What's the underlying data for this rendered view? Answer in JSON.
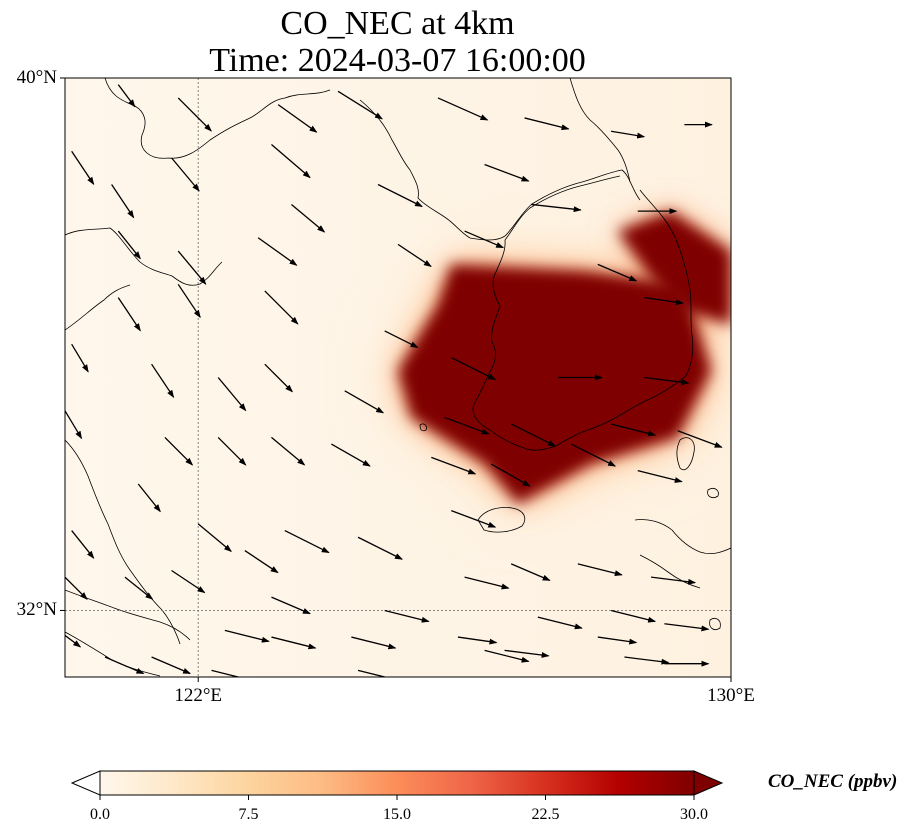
{
  "title": {
    "line1": "CO_NEC at 4km",
    "line2": "Time: 2024-03-07 16:00:00"
  },
  "map": {
    "lon_range": [
      120,
      130
    ],
    "lat_range": [
      31,
      40
    ],
    "lat_ticks": [
      {
        "value": 40,
        "label": "40°N"
      },
      {
        "value": 32,
        "label": "32°N"
      }
    ],
    "lon_ticks": [
      {
        "value": 122,
        "label": "122°E"
      },
      {
        "value": 130,
        "label": "130°E"
      }
    ],
    "gridlines": {
      "lon": 122,
      "lat": 32
    }
  },
  "colorbar": {
    "label": "CO_NEC (ppbv)",
    "min": 0,
    "max": 30,
    "extend": "both",
    "colormap": "OrRd",
    "ticks": [
      {
        "value": 0,
        "label": "0.0"
      },
      {
        "value": 7.5,
        "label": "7.5"
      },
      {
        "value": 15,
        "label": "15.0"
      },
      {
        "value": 22.5,
        "label": "22.5"
      },
      {
        "value": 30,
        "label": "30.0"
      }
    ],
    "colors": [
      "#fff7ec",
      "#fee8c8",
      "#fdd49e",
      "#fdbb84",
      "#fc8d59",
      "#ef6548",
      "#d7301f",
      "#b30000",
      "#7f0000"
    ]
  },
  "chart_data": {
    "type": "heatmap",
    "variable": "CO_NEC",
    "units": "ppbv",
    "level": "4km",
    "time": "2024-03-07 16:00:00",
    "plume": {
      "description_only_for_rendering": false,
      "core_polygon_lonlat": [
        [
          125.8,
          37.2
        ],
        [
          127.8,
          37.1
        ],
        [
          129.3,
          36.9
        ],
        [
          129.7,
          35.6
        ],
        [
          129.2,
          34.6
        ],
        [
          127.9,
          34.2
        ],
        [
          126.8,
          33.6
        ],
        [
          126.3,
          34.2
        ],
        [
          125.2,
          34.9
        ],
        [
          125.0,
          35.6
        ],
        [
          125.6,
          36.6
        ]
      ],
      "core_value": 30,
      "ne_core_polygon_lonlat": [
        [
          128.3,
          37.7
        ],
        [
          129.1,
          38.0
        ],
        [
          130.0,
          37.4
        ],
        [
          130.0,
          36.3
        ],
        [
          129.3,
          36.5
        ],
        [
          128.8,
          37.0
        ]
      ],
      "ne_core_value": 30,
      "halo_value": 14,
      "outer_value": 5
    },
    "wind_vectors": [
      {
        "lon": 120.8,
        "lat": 39.9,
        "u": 0.3,
        "v": -0.4
      },
      {
        "lon": 121.7,
        "lat": 39.7,
        "u": 0.6,
        "v": -0.6
      },
      {
        "lon": 123.2,
        "lat": 39.6,
        "u": 0.7,
        "v": -0.5
      },
      {
        "lon": 124.1,
        "lat": 39.8,
        "u": 0.8,
        "v": -0.5
      },
      {
        "lon": 125.6,
        "lat": 39.7,
        "u": 0.9,
        "v": -0.4
      },
      {
        "lon": 126.9,
        "lat": 39.4,
        "u": 0.8,
        "v": -0.2
      },
      {
        "lon": 128.2,
        "lat": 39.2,
        "u": 0.6,
        "v": -0.1
      },
      {
        "lon": 129.3,
        "lat": 39.3,
        "u": 0.5,
        "v": 0
      },
      {
        "lon": 120.1,
        "lat": 38.9,
        "u": 0.4,
        "v": -0.6
      },
      {
        "lon": 120.7,
        "lat": 38.4,
        "u": 0.4,
        "v": -0.6
      },
      {
        "lon": 121.6,
        "lat": 38.8,
        "u": 0.5,
        "v": -0.6
      },
      {
        "lon": 123.1,
        "lat": 39.0,
        "u": 0.7,
        "v": -0.6
      },
      {
        "lon": 124.7,
        "lat": 38.4,
        "u": 0.8,
        "v": -0.4
      },
      {
        "lon": 126.3,
        "lat": 38.7,
        "u": 0.8,
        "v": -0.3
      },
      {
        "lon": 127.0,
        "lat": 38.1,
        "u": 0.9,
        "v": -0.1
      },
      {
        "lon": 128.6,
        "lat": 38.0,
        "u": 0.7,
        "v": 0
      },
      {
        "lon": 120.8,
        "lat": 37.7,
        "u": 0.4,
        "v": -0.5
      },
      {
        "lon": 121.7,
        "lat": 37.4,
        "u": 0.5,
        "v": -0.6
      },
      {
        "lon": 122.9,
        "lat": 37.6,
        "u": 0.7,
        "v": -0.5
      },
      {
        "lon": 123.4,
        "lat": 38.1,
        "u": 0.6,
        "v": -0.5
      },
      {
        "lon": 125.0,
        "lat": 37.5,
        "u": 0.6,
        "v": -0.4
      },
      {
        "lon": 126.0,
        "lat": 37.7,
        "u": 0.7,
        "v": -0.3
      },
      {
        "lon": 128.0,
        "lat": 37.2,
        "u": 0.7,
        "v": -0.3
      },
      {
        "lon": 128.7,
        "lat": 36.7,
        "u": 0.7,
        "v": -0.1
      },
      {
        "lon": 120.8,
        "lat": 36.7,
        "u": 0.4,
        "v": -0.6
      },
      {
        "lon": 121.7,
        "lat": 36.9,
        "u": 0.4,
        "v": -0.6
      },
      {
        "lon": 123.0,
        "lat": 36.8,
        "u": 0.6,
        "v": -0.6
      },
      {
        "lon": 124.8,
        "lat": 36.2,
        "u": 0.6,
        "v": -0.3
      },
      {
        "lon": 125.8,
        "lat": 35.8,
        "u": 0.8,
        "v": -0.4
      },
      {
        "lon": 127.4,
        "lat": 35.5,
        "u": 0.8,
        "v": 0
      },
      {
        "lon": 128.7,
        "lat": 35.5,
        "u": 0.8,
        "v": -0.1
      },
      {
        "lon": 120.1,
        "lat": 36.0,
        "u": 0.3,
        "v": -0.5
      },
      {
        "lon": 121.3,
        "lat": 35.7,
        "u": 0.4,
        "v": -0.6
      },
      {
        "lon": 122.3,
        "lat": 35.5,
        "u": 0.5,
        "v": -0.6
      },
      {
        "lon": 123.0,
        "lat": 35.7,
        "u": 0.5,
        "v": -0.5
      },
      {
        "lon": 124.2,
        "lat": 35.3,
        "u": 0.7,
        "v": -0.4
      },
      {
        "lon": 125.7,
        "lat": 34.9,
        "u": 0.8,
        "v": -0.3
      },
      {
        "lon": 126.7,
        "lat": 34.8,
        "u": 0.8,
        "v": -0.4
      },
      {
        "lon": 128.2,
        "lat": 34.8,
        "u": 0.8,
        "v": -0.2
      },
      {
        "lon": 129.2,
        "lat": 34.7,
        "u": 0.8,
        "v": -0.3
      },
      {
        "lon": 120.0,
        "lat": 35.0,
        "u": 0.3,
        "v": -0.5
      },
      {
        "lon": 121.5,
        "lat": 34.6,
        "u": 0.5,
        "v": -0.5
      },
      {
        "lon": 122.3,
        "lat": 34.6,
        "u": 0.5,
        "v": -0.5
      },
      {
        "lon": 123.1,
        "lat": 34.6,
        "u": 0.6,
        "v": -0.5
      },
      {
        "lon": 124.0,
        "lat": 34.5,
        "u": 0.7,
        "v": -0.4
      },
      {
        "lon": 125.5,
        "lat": 34.3,
        "u": 0.8,
        "v": -0.3
      },
      {
        "lon": 126.4,
        "lat": 34.2,
        "u": 0.7,
        "v": -0.4
      },
      {
        "lon": 127.6,
        "lat": 34.5,
        "u": 0.8,
        "v": -0.4
      },
      {
        "lon": 128.6,
        "lat": 34.1,
        "u": 0.8,
        "v": -0.2
      },
      {
        "lon": 120.1,
        "lat": 33.2,
        "u": 0.4,
        "v": -0.5
      },
      {
        "lon": 121.1,
        "lat": 33.9,
        "u": 0.4,
        "v": -0.5
      },
      {
        "lon": 122.0,
        "lat": 33.3,
        "u": 0.6,
        "v": -0.5
      },
      {
        "lon": 122.7,
        "lat": 32.9,
        "u": 0.6,
        "v": -0.4
      },
      {
        "lon": 123.3,
        "lat": 33.2,
        "u": 0.8,
        "v": -0.4
      },
      {
        "lon": 124.4,
        "lat": 33.1,
        "u": 0.8,
        "v": -0.4
      },
      {
        "lon": 125.8,
        "lat": 33.5,
        "u": 0.8,
        "v": -0.3
      },
      {
        "lon": 126.7,
        "lat": 32.7,
        "u": 0.7,
        "v": -0.3
      },
      {
        "lon": 127.7,
        "lat": 32.7,
        "u": 0.8,
        "v": -0.2
      },
      {
        "lon": 128.8,
        "lat": 32.5,
        "u": 0.8,
        "v": -0.1
      },
      {
        "lon": 120.0,
        "lat": 32.5,
        "u": 0.4,
        "v": -0.4
      },
      {
        "lon": 120.9,
        "lat": 32.5,
        "u": 0.5,
        "v": -0.4
      },
      {
        "lon": 121.6,
        "lat": 32.6,
        "u": 0.6,
        "v": -0.4
      },
      {
        "lon": 123.1,
        "lat": 32.2,
        "u": 0.7,
        "v": -0.3
      },
      {
        "lon": 124.8,
        "lat": 32.0,
        "u": 0.8,
        "v": -0.2
      },
      {
        "lon": 126.0,
        "lat": 32.5,
        "u": 0.8,
        "v": -0.2
      },
      {
        "lon": 127.1,
        "lat": 31.9,
        "u": 0.8,
        "v": -0.2
      },
      {
        "lon": 128.2,
        "lat": 32.0,
        "u": 0.8,
        "v": -0.2
      },
      {
        "lon": 129.0,
        "lat": 31.8,
        "u": 0.8,
        "v": -0.1
      },
      {
        "lon": 119.9,
        "lat": 31.7,
        "u": 0.4,
        "v": -0.3
      },
      {
        "lon": 120.6,
        "lat": 31.3,
        "u": 0.7,
        "v": -0.3
      },
      {
        "lon": 122.4,
        "lat": 31.7,
        "u": 0.8,
        "v": -0.2
      },
      {
        "lon": 123.1,
        "lat": 31.6,
        "u": 0.8,
        "v": -0.2
      },
      {
        "lon": 124.3,
        "lat": 31.6,
        "u": 0.8,
        "v": -0.2
      },
      {
        "lon": 125.9,
        "lat": 31.6,
        "u": 0.7,
        "v": -0.1
      },
      {
        "lon": 126.6,
        "lat": 31.4,
        "u": 0.8,
        "v": -0.1
      },
      {
        "lon": 128.0,
        "lat": 31.6,
        "u": 0.7,
        "v": -0.1
      },
      {
        "lon": 128.4,
        "lat": 31.3,
        "u": 0.8,
        "v": -0.1
      },
      {
        "lon": 121.3,
        "lat": 31.3,
        "u": 0.7,
        "v": -0.3
      },
      {
        "lon": 122.2,
        "lat": 31.1,
        "u": 0.8,
        "v": -0.2
      },
      {
        "lon": 124.4,
        "lat": 31.1,
        "u": 0.8,
        "v": -0.2
      },
      {
        "lon": 126.3,
        "lat": 31.4,
        "u": 0.8,
        "v": -0.2
      },
      {
        "lon": 129.0,
        "lat": 31.2,
        "u": 0.8,
        "v": 0
      },
      {
        "lon": 120.2,
        "lat": 31.0,
        "u": 0.7,
        "v": -0.2
      }
    ]
  }
}
